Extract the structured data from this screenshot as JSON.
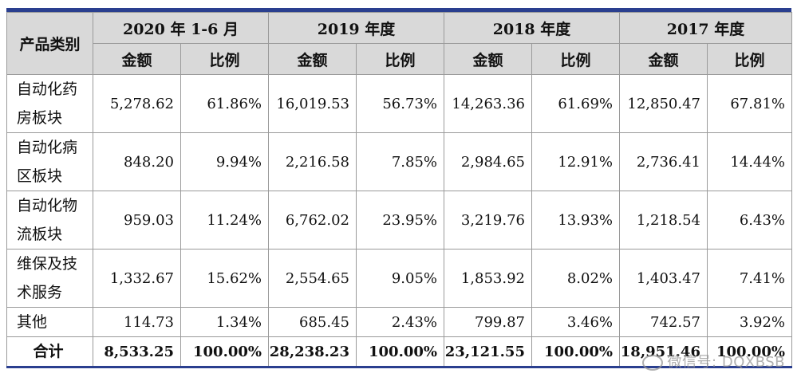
{
  "header": {
    "category": "产品类别",
    "periods": [
      "2020 年 1-6 月",
      "2019 年度",
      "2018 年度",
      "2017 年度"
    ],
    "amount": "金额",
    "ratio": "比例"
  },
  "rows": [
    {
      "category": "自动化药房板块",
      "values": [
        "5,278.62",
        "61.86%",
        "16,019.53",
        "56.73%",
        "14,263.36",
        "61.69%",
        "12,850.47",
        "67.81%"
      ]
    },
    {
      "category": "自动化病区板块",
      "values": [
        "848.20",
        "9.94%",
        "2,216.58",
        "7.85%",
        "2,984.65",
        "12.91%",
        "2,736.41",
        "14.44%"
      ]
    },
    {
      "category": "自动化物流板块",
      "values": [
        "959.03",
        "11.24%",
        "6,762.02",
        "23.95%",
        "3,219.76",
        "13.93%",
        "1,218.54",
        "6.43%"
      ]
    },
    {
      "category": "维保及技术服务",
      "values": [
        "1,332.67",
        "15.62%",
        "2,554.65",
        "9.05%",
        "1,853.92",
        "8.02%",
        "1,403.47",
        "7.41%"
      ]
    },
    {
      "category": "其他",
      "values": [
        "114.73",
        "1.34%",
        "685.45",
        "2.43%",
        "799.87",
        "3.46%",
        "742.57",
        "3.92%"
      ]
    }
  ],
  "total": {
    "category": "合计",
    "values": [
      "8,533.25",
      "100.00%",
      "28,238.23",
      "100.00%",
      "23,121.55",
      "100.00%",
      "18,951.46",
      "100.00%"
    ]
  },
  "watermark": "微信号: DQXBSB"
}
